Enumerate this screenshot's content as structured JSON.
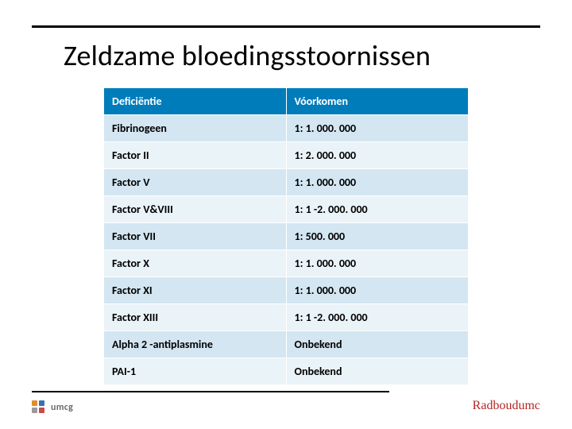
{
  "title": "Zeldzame bloedingsstoornissen",
  "table": {
    "columns": [
      "Deficiëntie",
      "Vóorkomen"
    ],
    "rows": [
      [
        "Fibrinogeen",
        "1: 1. 000. 000"
      ],
      [
        "Factor II",
        "1: 2. 000. 000"
      ],
      [
        "Factor V",
        "1: 1. 000. 000"
      ],
      [
        "Factor V&VIII",
        "1: 1 -2. 000. 000"
      ],
      [
        "Factor VII",
        "1: 500. 000"
      ],
      [
        "Factor X",
        "1: 1. 000. 000"
      ],
      [
        "Factor XI",
        "1: 1. 000. 000"
      ],
      [
        "Factor XIII",
        "1: 1 -2. 000. 000"
      ],
      [
        "Alpha 2 -antiplasmine",
        "Onbekend"
      ],
      [
        "PAI-1",
        "Onbekend"
      ]
    ],
    "header_bg": "#007cba",
    "header_fg": "#ffffff",
    "row_alt_a_bg": "#d3e6f1",
    "row_alt_b_bg": "#eaf3f8",
    "fontsize": 14,
    "font_weight_header": "700",
    "font_weight_cells": "700"
  },
  "logos": {
    "umcg_text": "umcg",
    "radboud_text": "Radboudumc"
  },
  "styling": {
    "title_fontsize": 36,
    "title_color": "#000000",
    "rule_color": "#000000",
    "background_color": "#ffffff",
    "umcg_text_color": "#6a6a6a",
    "radboud_text_color": "#b52626",
    "font_family": "Calibri, Segoe UI, Arial, sans-serif"
  }
}
